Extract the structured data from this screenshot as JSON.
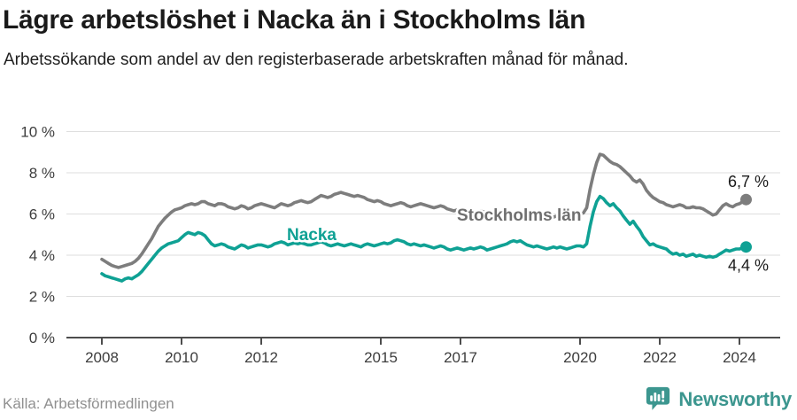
{
  "header": {
    "title": "Lägre arbetslöshet i Nacka än i Stockholms län",
    "subtitle": "Arbetssökande som andel av den registerbaserade arbetskraften månad för månad."
  },
  "footer": {
    "source": "Källa: Arbetsförmedlingen",
    "brand": "Newsworthy",
    "brand_icon": "bar-chart-speech-bubble-icon",
    "brand_color": "#3C968F"
  },
  "chart_data": {
    "type": "line",
    "unit": "%",
    "x_start_year": 2008,
    "x_step_months": 1,
    "x_ticks": [
      2008,
      2010,
      2012,
      2015,
      2017,
      2020,
      2022,
      2024
    ],
    "y_ticks": [
      0,
      2,
      4,
      6,
      8,
      10
    ],
    "y_tick_suffix": " %",
    "ylim": [
      0,
      10
    ],
    "grid": true,
    "series": [
      {
        "name": "Stockholms län",
        "color": "#7d7d7d",
        "label_color": "#6f6f6f",
        "end_label": "6,7 %",
        "end_value": 6.7,
        "values": [
          3.8,
          3.7,
          3.6,
          3.5,
          3.45,
          3.4,
          3.45,
          3.5,
          3.55,
          3.6,
          3.7,
          3.85,
          4.05,
          4.3,
          4.55,
          4.8,
          5.1,
          5.4,
          5.6,
          5.8,
          5.95,
          6.1,
          6.2,
          6.25,
          6.3,
          6.4,
          6.45,
          6.5,
          6.45,
          6.5,
          6.6,
          6.6,
          6.5,
          6.45,
          6.4,
          6.5,
          6.5,
          6.45,
          6.35,
          6.3,
          6.25,
          6.3,
          6.4,
          6.35,
          6.25,
          6.3,
          6.4,
          6.45,
          6.5,
          6.45,
          6.4,
          6.35,
          6.3,
          6.4,
          6.5,
          6.45,
          6.4,
          6.45,
          6.55,
          6.6,
          6.65,
          6.6,
          6.55,
          6.6,
          6.7,
          6.8,
          6.9,
          6.85,
          6.8,
          6.85,
          6.95,
          7.0,
          7.05,
          7.0,
          6.95,
          6.9,
          6.85,
          6.9,
          6.85,
          6.8,
          6.7,
          6.65,
          6.6,
          6.65,
          6.6,
          6.5,
          6.45,
          6.4,
          6.45,
          6.5,
          6.55,
          6.5,
          6.4,
          6.35,
          6.4,
          6.45,
          6.5,
          6.45,
          6.4,
          6.35,
          6.3,
          6.35,
          6.4,
          6.35,
          6.25,
          6.2,
          6.15,
          6.2,
          6.15,
          6.1,
          6.05,
          6.0,
          6.05,
          6.1,
          6.15,
          6.1,
          6.0,
          5.95,
          6.0,
          6.05,
          6.0,
          5.95,
          5.9,
          5.9,
          5.95,
          6.0,
          6.05,
          6.0,
          5.9,
          5.85,
          5.9,
          5.95,
          5.9,
          5.85,
          5.8,
          5.8,
          5.85,
          5.9,
          5.95,
          5.9,
          5.85,
          5.9,
          5.95,
          6.0,
          6.0,
          6.05,
          6.3,
          7.2,
          7.9,
          8.5,
          8.9,
          8.85,
          8.7,
          8.55,
          8.45,
          8.4,
          8.3,
          8.15,
          8.0,
          7.85,
          7.65,
          7.55,
          7.65,
          7.45,
          7.15,
          6.95,
          6.8,
          6.7,
          6.6,
          6.55,
          6.45,
          6.4,
          6.35,
          6.4,
          6.45,
          6.4,
          6.3,
          6.3,
          6.35,
          6.3,
          6.3,
          6.25,
          6.15,
          6.05,
          5.95,
          6.0,
          6.2,
          6.4,
          6.5,
          6.4,
          6.35,
          6.45,
          6.5,
          6.6,
          6.7
        ]
      },
      {
        "name": "Nacka",
        "color": "#0fa194",
        "label_color": "#0fa194",
        "end_label": "4,4 %",
        "end_value": 4.4,
        "values": [
          3.1,
          3.0,
          2.95,
          2.9,
          2.85,
          2.8,
          2.75,
          2.85,
          2.9,
          2.85,
          2.95,
          3.05,
          3.2,
          3.4,
          3.6,
          3.8,
          4.0,
          4.2,
          4.35,
          4.45,
          4.55,
          4.6,
          4.65,
          4.7,
          4.85,
          5.0,
          5.1,
          5.05,
          5.0,
          5.1,
          5.05,
          4.95,
          4.75,
          4.55,
          4.45,
          4.5,
          4.55,
          4.5,
          4.4,
          4.35,
          4.3,
          4.4,
          4.5,
          4.45,
          4.35,
          4.4,
          4.45,
          4.5,
          4.5,
          4.45,
          4.4,
          4.45,
          4.55,
          4.6,
          4.65,
          4.6,
          4.5,
          4.55,
          4.6,
          4.55,
          4.6,
          4.55,
          4.5,
          4.5,
          4.55,
          4.6,
          4.65,
          4.6,
          4.5,
          4.45,
          4.5,
          4.55,
          4.5,
          4.45,
          4.5,
          4.55,
          4.5,
          4.45,
          4.4,
          4.5,
          4.55,
          4.5,
          4.45,
          4.5,
          4.55,
          4.6,
          4.55,
          4.6,
          4.7,
          4.75,
          4.7,
          4.65,
          4.55,
          4.5,
          4.55,
          4.5,
          4.45,
          4.5,
          4.45,
          4.4,
          4.35,
          4.4,
          4.45,
          4.4,
          4.3,
          4.25,
          4.3,
          4.35,
          4.3,
          4.25,
          4.3,
          4.35,
          4.3,
          4.35,
          4.4,
          4.35,
          4.25,
          4.3,
          4.35,
          4.4,
          4.45,
          4.5,
          4.55,
          4.65,
          4.7,
          4.65,
          4.7,
          4.6,
          4.5,
          4.45,
          4.4,
          4.45,
          4.4,
          4.35,
          4.3,
          4.35,
          4.4,
          4.35,
          4.4,
          4.35,
          4.3,
          4.35,
          4.4,
          4.45,
          4.45,
          4.4,
          4.55,
          5.4,
          6.1,
          6.6,
          6.85,
          6.75,
          6.55,
          6.4,
          6.5,
          6.3,
          6.15,
          5.9,
          5.7,
          5.5,
          5.65,
          5.4,
          5.2,
          4.9,
          4.7,
          4.5,
          4.55,
          4.45,
          4.4,
          4.35,
          4.3,
          4.15,
          4.05,
          4.1,
          4.0,
          4.05,
          3.95,
          4.0,
          4.05,
          3.95,
          4.0,
          3.95,
          3.9,
          3.95,
          3.9,
          3.95,
          4.05,
          4.15,
          4.25,
          4.2,
          4.25,
          4.3,
          4.3,
          4.35,
          4.4
        ]
      }
    ]
  }
}
